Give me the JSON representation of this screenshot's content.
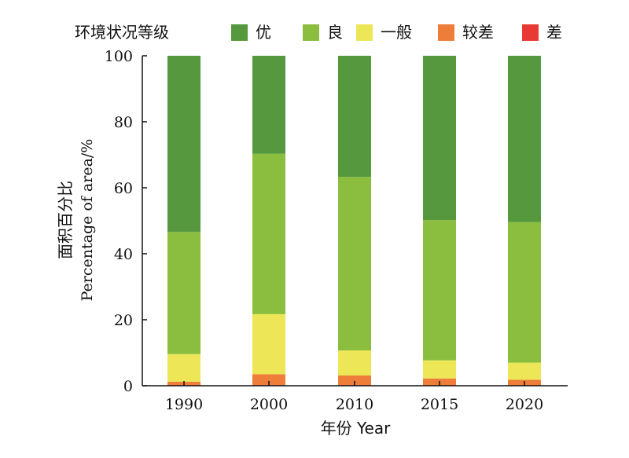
{
  "chart_data": {
    "type": "bar",
    "stacked": true,
    "legend_title": "环境状况等级",
    "legend_position": "top",
    "categories": [
      "1990",
      "2000",
      "2010",
      "2015",
      "2020"
    ],
    "series": [
      {
        "name": "差",
        "color": "#e83a33",
        "values": [
          0.2,
          0.2,
          0.2,
          0.1,
          0.1
        ]
      },
      {
        "name": "较差",
        "color": "#ee7d3a",
        "values": [
          1.0,
          3.3,
          2.9,
          2.1,
          1.7
        ]
      },
      {
        "name": "一般",
        "color": "#ede657",
        "values": [
          8.4,
          18.2,
          7.6,
          5.5,
          5.2
        ]
      },
      {
        "name": "良",
        "color": "#8bbe3e",
        "values": [
          37.0,
          48.6,
          52.6,
          42.5,
          42.6
        ]
      },
      {
        "name": "优",
        "color": "#55983d",
        "values": [
          53.4,
          29.7,
          36.7,
          49.8,
          50.4
        ]
      }
    ],
    "legend_order": [
      "优",
      "良",
      "一般",
      "较差",
      "差"
    ],
    "ylabel_cn": "面积百分比",
    "ylabel_en": "Percentage of area/%",
    "xlabel": "年份 Year",
    "ylim": [
      0,
      100
    ],
    "yticks": [
      0,
      20,
      40,
      60,
      80,
      100
    ],
    "grid": false
  }
}
